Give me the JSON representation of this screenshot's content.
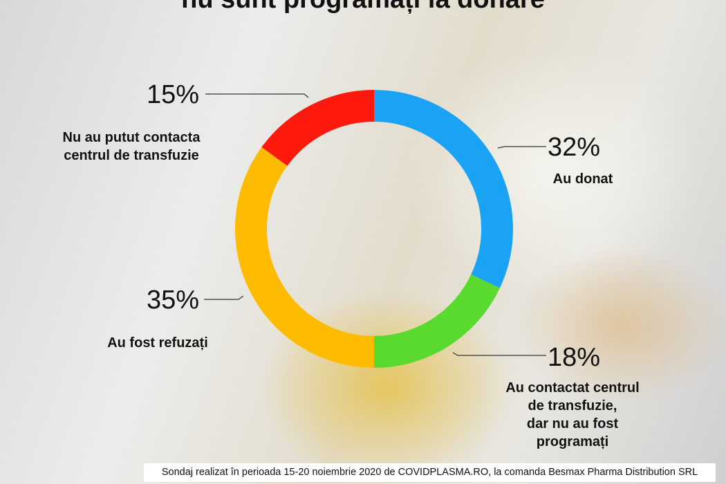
{
  "chart_data": {
    "type": "donut",
    "title": "nu sunt programați la donare",
    "categories": [
      "Au donat",
      "Au contactat centrul de transfuzie,\ndar nu au fost programați",
      "Au fost refuzați",
      "Nu au putut contacta\ncentrul de transfuzie"
    ],
    "values": [
      32,
      18,
      35,
      15
    ],
    "value_labels": [
      "32%",
      "18%",
      "35%",
      "15%"
    ],
    "colors": [
      "#1aa3f5",
      "#5ad92f",
      "#ffbb00",
      "#ff1a0d"
    ],
    "source": "Sondaj realizat în perioada 15-20 noiembrie 2020 de COVIDPLASMA.RO, la comanda Besmax Pharma Distribution SRL"
  }
}
